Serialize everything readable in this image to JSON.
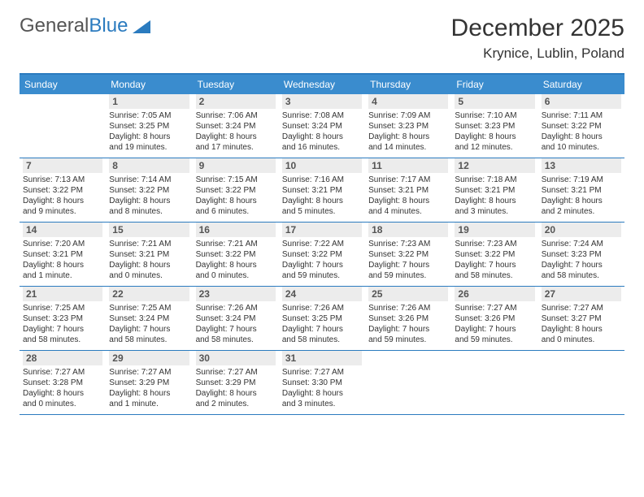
{
  "brand": {
    "name_part1": "General",
    "name_part2": "Blue"
  },
  "title": "December 2025",
  "location": "Krynice, Lublin, Poland",
  "colors": {
    "header_bg": "#3a8cce",
    "header_text": "#ffffff",
    "border": "#2b7bbf",
    "daynum_bg": "#ececec",
    "daynum_text": "#555555",
    "body_text": "#333333"
  },
  "daynames": [
    "Sunday",
    "Monday",
    "Tuesday",
    "Wednesday",
    "Thursday",
    "Friday",
    "Saturday"
  ],
  "weeks": [
    [
      null,
      {
        "n": "1",
        "sr": "Sunrise: 7:05 AM",
        "ss": "Sunset: 3:25 PM",
        "d1": "Daylight: 8 hours",
        "d2": "and 19 minutes."
      },
      {
        "n": "2",
        "sr": "Sunrise: 7:06 AM",
        "ss": "Sunset: 3:24 PM",
        "d1": "Daylight: 8 hours",
        "d2": "and 17 minutes."
      },
      {
        "n": "3",
        "sr": "Sunrise: 7:08 AM",
        "ss": "Sunset: 3:24 PM",
        "d1": "Daylight: 8 hours",
        "d2": "and 16 minutes."
      },
      {
        "n": "4",
        "sr": "Sunrise: 7:09 AM",
        "ss": "Sunset: 3:23 PM",
        "d1": "Daylight: 8 hours",
        "d2": "and 14 minutes."
      },
      {
        "n": "5",
        "sr": "Sunrise: 7:10 AM",
        "ss": "Sunset: 3:23 PM",
        "d1": "Daylight: 8 hours",
        "d2": "and 12 minutes."
      },
      {
        "n": "6",
        "sr": "Sunrise: 7:11 AM",
        "ss": "Sunset: 3:22 PM",
        "d1": "Daylight: 8 hours",
        "d2": "and 10 minutes."
      }
    ],
    [
      {
        "n": "7",
        "sr": "Sunrise: 7:13 AM",
        "ss": "Sunset: 3:22 PM",
        "d1": "Daylight: 8 hours",
        "d2": "and 9 minutes."
      },
      {
        "n": "8",
        "sr": "Sunrise: 7:14 AM",
        "ss": "Sunset: 3:22 PM",
        "d1": "Daylight: 8 hours",
        "d2": "and 8 minutes."
      },
      {
        "n": "9",
        "sr": "Sunrise: 7:15 AM",
        "ss": "Sunset: 3:22 PM",
        "d1": "Daylight: 8 hours",
        "d2": "and 6 minutes."
      },
      {
        "n": "10",
        "sr": "Sunrise: 7:16 AM",
        "ss": "Sunset: 3:21 PM",
        "d1": "Daylight: 8 hours",
        "d2": "and 5 minutes."
      },
      {
        "n": "11",
        "sr": "Sunrise: 7:17 AM",
        "ss": "Sunset: 3:21 PM",
        "d1": "Daylight: 8 hours",
        "d2": "and 4 minutes."
      },
      {
        "n": "12",
        "sr": "Sunrise: 7:18 AM",
        "ss": "Sunset: 3:21 PM",
        "d1": "Daylight: 8 hours",
        "d2": "and 3 minutes."
      },
      {
        "n": "13",
        "sr": "Sunrise: 7:19 AM",
        "ss": "Sunset: 3:21 PM",
        "d1": "Daylight: 8 hours",
        "d2": "and 2 minutes."
      }
    ],
    [
      {
        "n": "14",
        "sr": "Sunrise: 7:20 AM",
        "ss": "Sunset: 3:21 PM",
        "d1": "Daylight: 8 hours",
        "d2": "and 1 minute."
      },
      {
        "n": "15",
        "sr": "Sunrise: 7:21 AM",
        "ss": "Sunset: 3:21 PM",
        "d1": "Daylight: 8 hours",
        "d2": "and 0 minutes."
      },
      {
        "n": "16",
        "sr": "Sunrise: 7:21 AM",
        "ss": "Sunset: 3:22 PM",
        "d1": "Daylight: 8 hours",
        "d2": "and 0 minutes."
      },
      {
        "n": "17",
        "sr": "Sunrise: 7:22 AM",
        "ss": "Sunset: 3:22 PM",
        "d1": "Daylight: 7 hours",
        "d2": "and 59 minutes."
      },
      {
        "n": "18",
        "sr": "Sunrise: 7:23 AM",
        "ss": "Sunset: 3:22 PM",
        "d1": "Daylight: 7 hours",
        "d2": "and 59 minutes."
      },
      {
        "n": "19",
        "sr": "Sunrise: 7:23 AM",
        "ss": "Sunset: 3:22 PM",
        "d1": "Daylight: 7 hours",
        "d2": "and 58 minutes."
      },
      {
        "n": "20",
        "sr": "Sunrise: 7:24 AM",
        "ss": "Sunset: 3:23 PM",
        "d1": "Daylight: 7 hours",
        "d2": "and 58 minutes."
      }
    ],
    [
      {
        "n": "21",
        "sr": "Sunrise: 7:25 AM",
        "ss": "Sunset: 3:23 PM",
        "d1": "Daylight: 7 hours",
        "d2": "and 58 minutes."
      },
      {
        "n": "22",
        "sr": "Sunrise: 7:25 AM",
        "ss": "Sunset: 3:24 PM",
        "d1": "Daylight: 7 hours",
        "d2": "and 58 minutes."
      },
      {
        "n": "23",
        "sr": "Sunrise: 7:26 AM",
        "ss": "Sunset: 3:24 PM",
        "d1": "Daylight: 7 hours",
        "d2": "and 58 minutes."
      },
      {
        "n": "24",
        "sr": "Sunrise: 7:26 AM",
        "ss": "Sunset: 3:25 PM",
        "d1": "Daylight: 7 hours",
        "d2": "and 58 minutes."
      },
      {
        "n": "25",
        "sr": "Sunrise: 7:26 AM",
        "ss": "Sunset: 3:26 PM",
        "d1": "Daylight: 7 hours",
        "d2": "and 59 minutes."
      },
      {
        "n": "26",
        "sr": "Sunrise: 7:27 AM",
        "ss": "Sunset: 3:26 PM",
        "d1": "Daylight: 7 hours",
        "d2": "and 59 minutes."
      },
      {
        "n": "27",
        "sr": "Sunrise: 7:27 AM",
        "ss": "Sunset: 3:27 PM",
        "d1": "Daylight: 8 hours",
        "d2": "and 0 minutes."
      }
    ],
    [
      {
        "n": "28",
        "sr": "Sunrise: 7:27 AM",
        "ss": "Sunset: 3:28 PM",
        "d1": "Daylight: 8 hours",
        "d2": "and 0 minutes."
      },
      {
        "n": "29",
        "sr": "Sunrise: 7:27 AM",
        "ss": "Sunset: 3:29 PM",
        "d1": "Daylight: 8 hours",
        "d2": "and 1 minute."
      },
      {
        "n": "30",
        "sr": "Sunrise: 7:27 AM",
        "ss": "Sunset: 3:29 PM",
        "d1": "Daylight: 8 hours",
        "d2": "and 2 minutes."
      },
      {
        "n": "31",
        "sr": "Sunrise: 7:27 AM",
        "ss": "Sunset: 3:30 PM",
        "d1": "Daylight: 8 hours",
        "d2": "and 3 minutes."
      },
      null,
      null,
      null
    ]
  ]
}
